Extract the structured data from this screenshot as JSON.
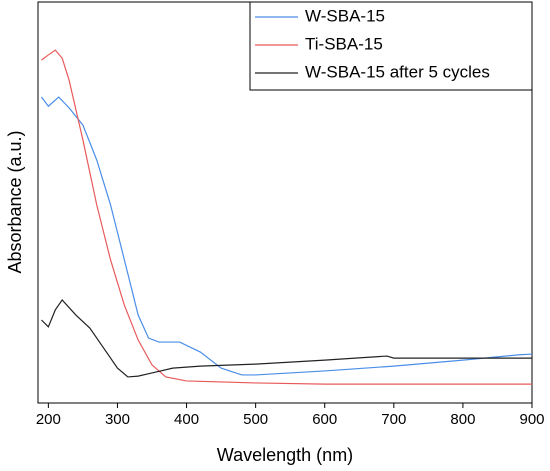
{
  "chart_data": {
    "type": "line",
    "xlabel": "Wavelength (nm)",
    "ylabel": "Absorbance (a.u.)",
    "xlim": [
      185,
      900
    ],
    "xticks": [
      200,
      300,
      400,
      500,
      600,
      700,
      800,
      900
    ],
    "ylim": [
      0,
      1
    ],
    "legend": "upper right",
    "series": [
      {
        "name": "W-SBA-15",
        "color": "#4a8ee8",
        "x": [
          190,
          200,
          215,
          230,
          250,
          270,
          290,
          310,
          330,
          345,
          360,
          390,
          420,
          450,
          480,
          500,
          600,
          700,
          800,
          880,
          900
        ],
        "values": [
          0.763,
          0.74,
          0.763,
          0.736,
          0.693,
          0.606,
          0.494,
          0.357,
          0.219,
          0.162,
          0.152,
          0.152,
          0.127,
          0.087,
          0.07,
          0.07,
          0.08,
          0.092,
          0.107,
          0.12,
          0.122
        ]
      },
      {
        "name": "Ti-SBA-15",
        "color": "#e85a5a",
        "x": [
          190,
          200,
          210,
          220,
          230,
          250,
          270,
          290,
          310,
          330,
          350,
          370,
          400,
          500,
          600,
          700,
          900
        ],
        "values": [
          0.855,
          0.868,
          0.88,
          0.86,
          0.805,
          0.656,
          0.494,
          0.357,
          0.244,
          0.157,
          0.095,
          0.065,
          0.055,
          0.05,
          0.047,
          0.047,
          0.047
        ]
      },
      {
        "name": "W-SBA-15 after 5 cycles",
        "color": "#222222",
        "x": [
          190,
          200,
          210,
          220,
          240,
          260,
          280,
          300,
          315,
          330,
          350,
          380,
          420,
          500,
          600,
          690,
          700,
          800,
          900
        ],
        "values": [
          0.207,
          0.19,
          0.232,
          0.257,
          0.219,
          0.187,
          0.137,
          0.087,
          0.065,
          0.067,
          0.075,
          0.087,
          0.092,
          0.097,
          0.107,
          0.117,
          0.112,
          0.112,
          0.112
        ]
      }
    ]
  }
}
